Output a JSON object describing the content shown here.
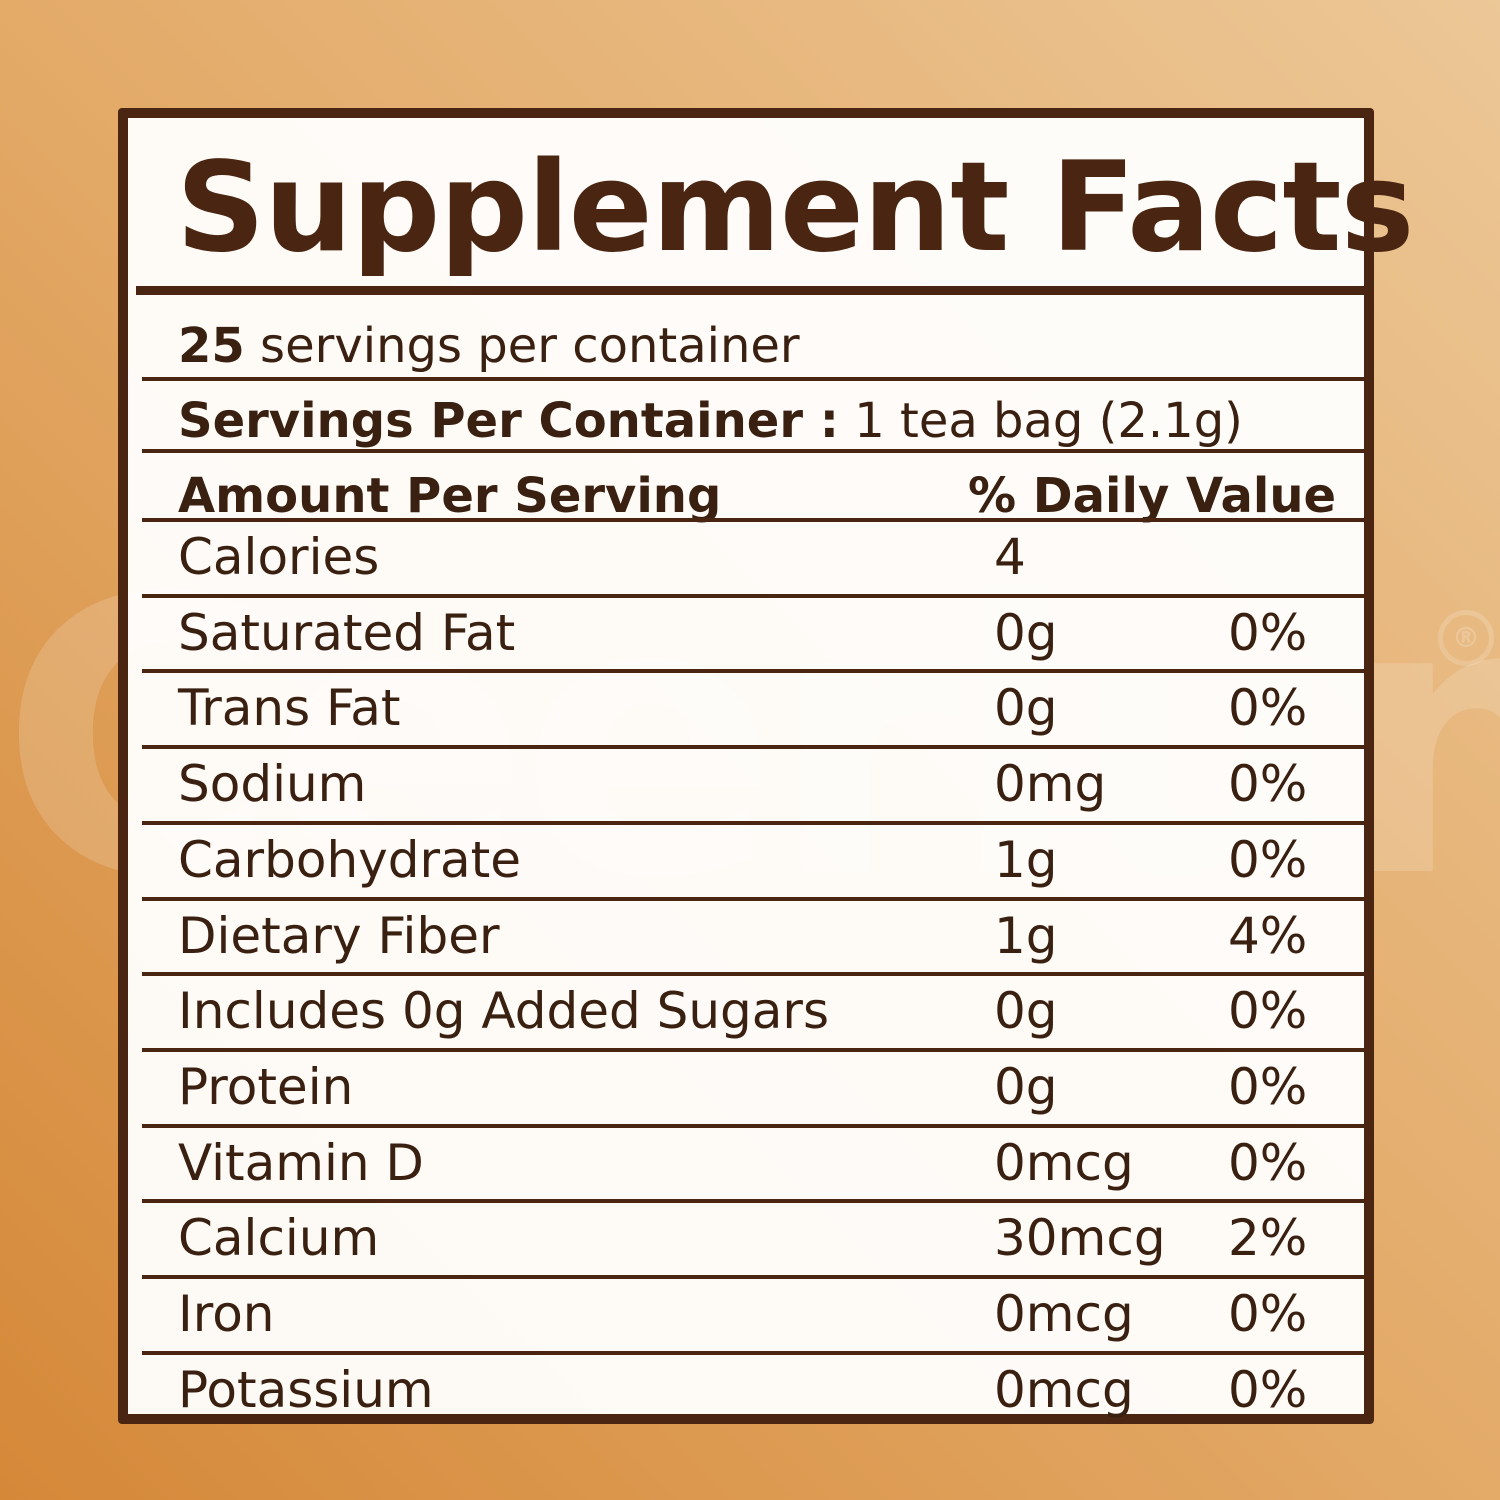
{
  "watermark": {
    "text": "Ceerlun",
    "registered_mark": "®"
  },
  "label": {
    "title": "Supplement Facts",
    "servings_line": {
      "number": "25",
      "text": " servings per container"
    },
    "serving_size_line": {
      "label": "Servings Per Container :",
      "value": " 1 tea bag (2.1g)"
    },
    "header": {
      "amount": "Amount Per Serving",
      "daily_value": "% Daily Value"
    },
    "rows": [
      {
        "name": "Calories",
        "amount": "4",
        "dv": ""
      },
      {
        "name": "Saturated Fat",
        "amount": "0g",
        "dv": "0%"
      },
      {
        "name": "Trans Fat",
        "amount": "0g",
        "dv": "0%"
      },
      {
        "name": "Sodium",
        "amount": "0mg",
        "dv": "0%"
      },
      {
        "name": "Carbohydrate",
        "amount": "1g",
        "dv": "0%"
      },
      {
        "name": "Dietary Fiber",
        "amount": "1g",
        "dv": "4%"
      },
      {
        "name": "Includes 0g Added Sugars",
        "amount": "0g",
        "dv": "0%"
      },
      {
        "name": "Protein",
        "amount": "0g",
        "dv": "0%"
      },
      {
        "name": "Vitamin D",
        "amount": "0mcg",
        "dv": "0%"
      },
      {
        "name": "Calcium",
        "amount": "30mcg",
        "dv": "2%"
      },
      {
        "name": "Iron",
        "amount": "0mcg",
        "dv": "0%"
      },
      {
        "name": "Potassium",
        "amount": "0mcg",
        "dv": "0%"
      }
    ]
  },
  "colors": {
    "ink": "#4a2612",
    "background_start": "#d58838",
    "background_end": "#ecc797"
  }
}
